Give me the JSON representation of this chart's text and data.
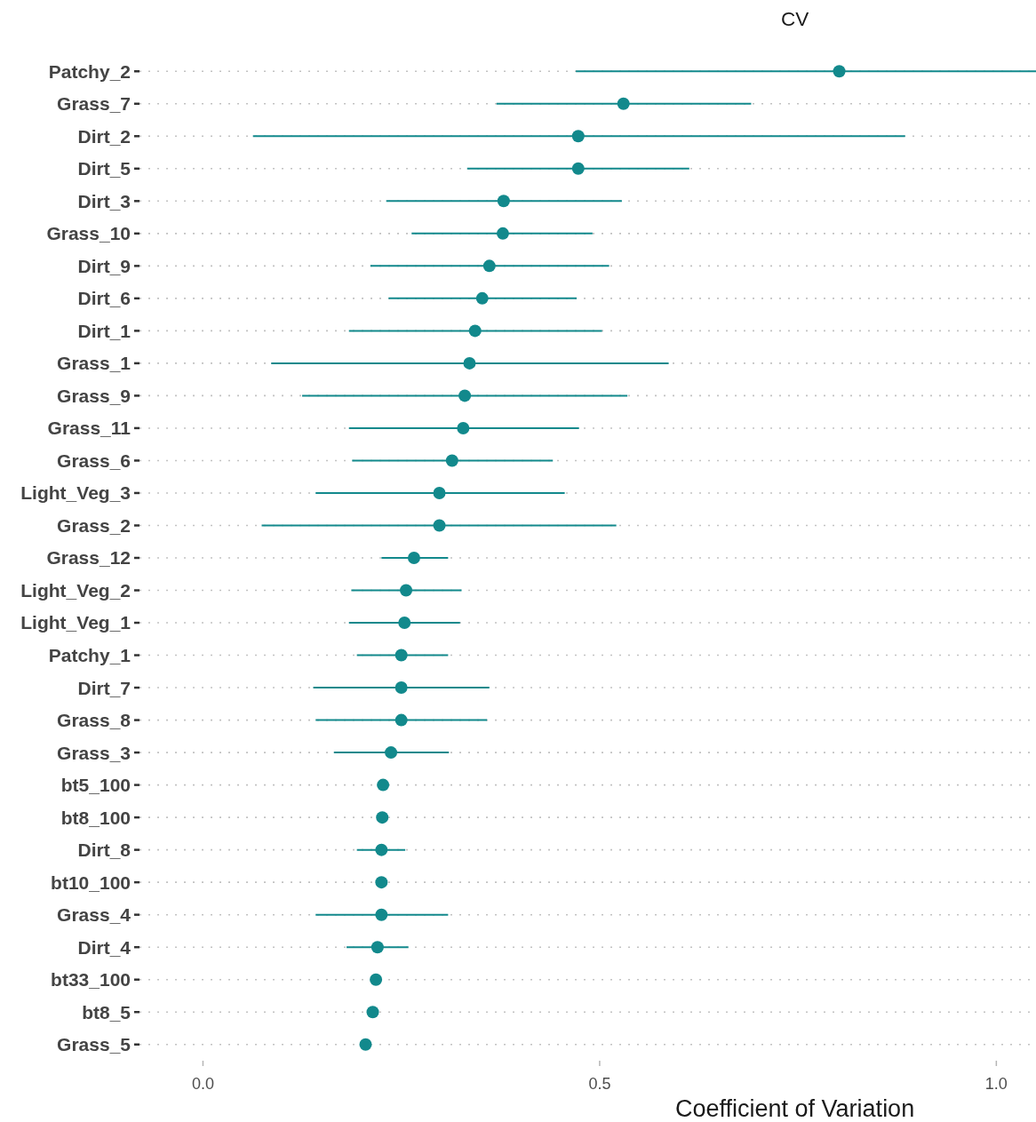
{
  "chart_data": {
    "type": "scatter",
    "orientation": "horizontal",
    "title": "CV",
    "xlabel": "Coefficient of Variation",
    "categories": [
      "Patchy_2",
      "Grass_7",
      "Dirt_2",
      "Dirt_5",
      "Dirt_3",
      "Grass_10",
      "Dirt_9",
      "Dirt_6",
      "Dirt_1",
      "Grass_1",
      "Grass_9",
      "Grass_11",
      "Grass_6",
      "Light_Veg_3",
      "Grass_2",
      "Grass_12",
      "Light_Veg_2",
      "Light_Veg_1",
      "Patchy_1",
      "Dirt_7",
      "Grass_8",
      "Grass_3",
      "bt5_100",
      "bt8_100",
      "Dirt_8",
      "bt10_100",
      "Grass_4",
      "Dirt_4",
      "bt33_100",
      "bt8_5",
      "Grass_5"
    ],
    "values": [
      0.802,
      0.53,
      0.473,
      0.473,
      0.379,
      0.378,
      0.361,
      0.352,
      0.343,
      0.336,
      0.33,
      0.328,
      0.314,
      0.298,
      0.298,
      0.266,
      0.256,
      0.254,
      0.25,
      0.25,
      0.25,
      0.237,
      0.227,
      0.226,
      0.225,
      0.225,
      0.225,
      0.22,
      0.218,
      0.214,
      0.205
    ],
    "errors": [
      [
        0.47,
        1.05
      ],
      [
        0.37,
        0.691
      ],
      [
        0.063,
        0.885
      ],
      [
        0.333,
        0.613
      ],
      [
        0.231,
        0.528
      ],
      [
        0.263,
        0.491
      ],
      [
        0.211,
        0.512
      ],
      [
        0.234,
        0.471
      ],
      [
        0.184,
        0.503
      ],
      [
        0.086,
        0.587
      ],
      [
        0.125,
        0.535
      ],
      [
        0.184,
        0.474
      ],
      [
        0.188,
        0.441
      ],
      [
        0.142,
        0.456
      ],
      [
        0.074,
        0.521
      ],
      [
        0.225,
        0.309
      ],
      [
        0.187,
        0.326
      ],
      [
        0.184,
        0.324
      ],
      [
        0.194,
        0.309
      ],
      [
        0.139,
        0.361
      ],
      [
        0.142,
        0.358
      ],
      [
        0.165,
        0.31
      ],
      null,
      null,
      [
        0.194,
        0.255
      ],
      null,
      [
        0.142,
        0.309
      ],
      [
        0.181,
        0.259
      ],
      null,
      null,
      null
    ],
    "color": "#12898c",
    "marker": "circle",
    "grid": "y",
    "xlim": [
      -0.08,
      1.05
    ],
    "xticks": [
      {
        "value": 0,
        "label": "0.0"
      },
      {
        "value": 0.5,
        "label": "0.5"
      },
      {
        "value": 1,
        "label": "1.0"
      }
    ]
  }
}
